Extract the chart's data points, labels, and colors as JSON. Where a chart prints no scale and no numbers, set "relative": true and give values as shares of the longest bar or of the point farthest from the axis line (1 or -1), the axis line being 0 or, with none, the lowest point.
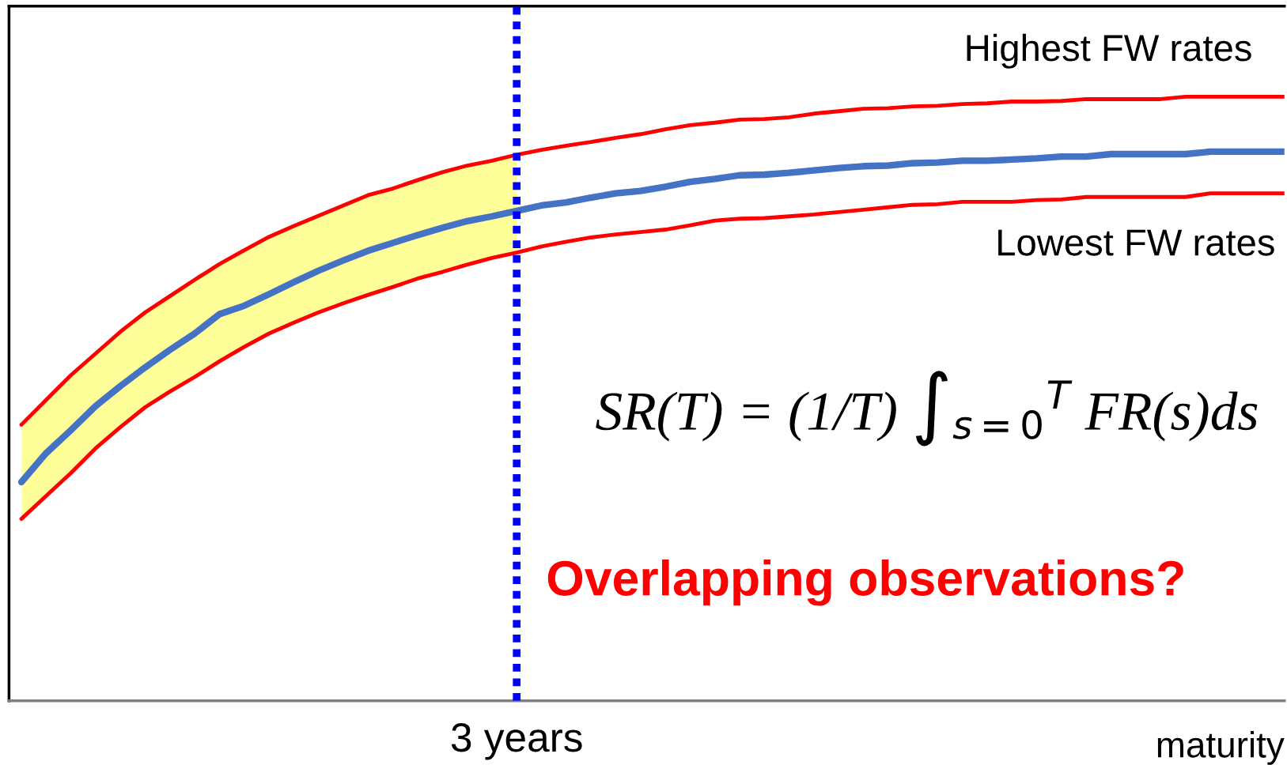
{
  "chart_data": {
    "type": "line",
    "relative": true,
    "xlabel": "maturity",
    "legend": false,
    "categories": [
      null,
      null,
      null,
      null,
      null,
      null,
      null,
      null,
      null,
      null,
      null,
      null,
      null,
      null,
      null,
      null,
      null,
      null,
      null,
      null,
      null,
      null,
      null,
      null,
      null,
      null,
      null,
      null,
      null,
      null,
      null,
      null,
      null,
      null,
      null,
      null,
      null,
      null,
      null,
      null,
      null,
      null,
      null,
      null,
      null,
      null,
      null,
      null,
      null,
      null,
      null,
      null
    ],
    "series": [
      {
        "name": "Highest FW rates",
        "color": "#ff0000",
        "values": [
          0.457,
          0.498,
          0.539,
          0.575,
          0.611,
          0.643,
          0.67,
          0.697,
          0.723,
          0.746,
          0.768,
          0.786,
          0.803,
          0.82,
          0.837,
          0.848,
          0.862,
          0.875,
          0.886,
          0.894,
          0.904,
          0.912,
          0.919,
          0.925,
          0.932,
          0.938,
          0.946,
          0.953,
          0.957,
          0.962,
          0.963,
          0.966,
          0.972,
          0.976,
          0.98,
          0.981,
          0.984,
          0.985,
          0.988,
          0.989,
          0.992,
          0.992,
          0.993,
          0.996,
          0.996,
          0.996,
          0.996,
          1,
          1,
          1,
          1,
          1
        ]
      },
      {
        "color": "#4472c4",
        "values": [
          0.362,
          0.41,
          0.448,
          0.488,
          0.521,
          0.552,
          0.581,
          0.608,
          0.64,
          0.654,
          0.673,
          0.693,
          0.712,
          0.729,
          0.745,
          0.758,
          0.771,
          0.783,
          0.794,
          0.802,
          0.811,
          0.82,
          0.825,
          0.833,
          0.84,
          0.844,
          0.851,
          0.859,
          0.864,
          0.87,
          0.871,
          0.874,
          0.878,
          0.882,
          0.885,
          0.886,
          0.89,
          0.891,
          0.894,
          0.894,
          0.896,
          0.898,
          0.901,
          0.901,
          0.905,
          0.905,
          0.905,
          0.905,
          0.909,
          0.909,
          0.909,
          0.909
        ],
        "lower": [
          0.301,
          0.339,
          0.377,
          0.418,
          0.453,
          0.486,
          0.512,
          0.536,
          0.562,
          0.586,
          0.608,
          0.626,
          0.643,
          0.658,
          0.672,
          0.685,
          0.699,
          0.71,
          0.722,
          0.733,
          0.742,
          null,
          null,
          null,
          null,
          null,
          null,
          null,
          null,
          null,
          null,
          null,
          null,
          null,
          null,
          null,
          null,
          null,
          null,
          null,
          null,
          null,
          null,
          null,
          null,
          null,
          null,
          null,
          null,
          null,
          null,
          null
        ],
        "upper": [
          0.457,
          0.498,
          0.539,
          0.575,
          0.611,
          0.643,
          0.67,
          0.697,
          0.723,
          0.746,
          0.768,
          0.786,
          0.803,
          0.82,
          0.837,
          0.848,
          0.862,
          0.875,
          0.886,
          0.894,
          0.904,
          null,
          null,
          null,
          null,
          null,
          null,
          null,
          null,
          null,
          null,
          null,
          null,
          null,
          null,
          null,
          null,
          null,
          null,
          null,
          null,
          null,
          null,
          null,
          null,
          null,
          null,
          null,
          null,
          null,
          null,
          null
        ]
      },
      {
        "name": "Lowest FW rates",
        "color": "#ff0000",
        "values": [
          0.301,
          0.339,
          0.377,
          0.418,
          0.453,
          0.486,
          0.512,
          0.536,
          0.562,
          0.586,
          0.608,
          0.626,
          0.643,
          0.658,
          0.672,
          0.685,
          0.699,
          0.71,
          0.722,
          0.733,
          0.742,
          0.752,
          0.76,
          0.767,
          0.772,
          0.776,
          0.78,
          0.787,
          0.795,
          0.798,
          0.799,
          0.802,
          0.805,
          0.809,
          0.813,
          0.817,
          0.821,
          0.822,
          0.826,
          0.826,
          0.826,
          0.829,
          0.83,
          0.834,
          0.834,
          0.834,
          0.834,
          0.834,
          0.84,
          0.84,
          0.84,
          0.84
        ]
      }
    ],
    "annotations": [
      "3 years",
      "SR(T) = (1/T) ∫$_{s=0}$$^{T}$ FR(s)ds",
      "Overlapping observations?"
    ]
  }
}
